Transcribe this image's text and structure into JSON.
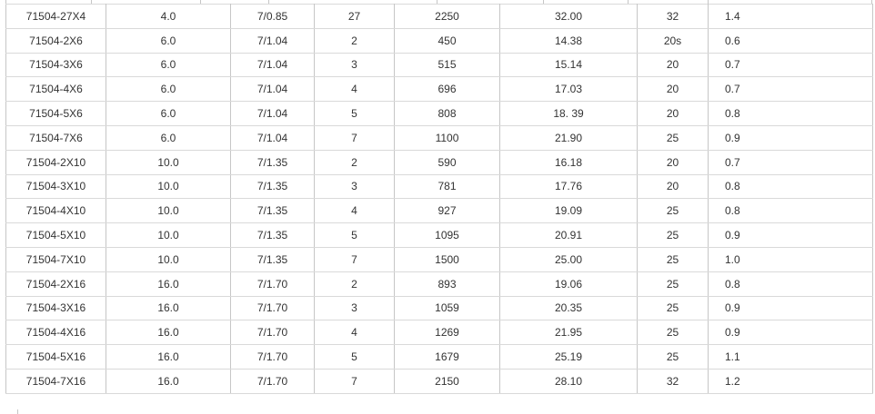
{
  "table": {
    "rows": [
      [
        "71504-27X4",
        "4.0",
        "7/0.85",
        "27",
        "2250",
        "32.00",
        "32",
        "1.4"
      ],
      [
        "71504-2X6",
        "6.0",
        "7/1.04",
        "2",
        "450",
        "14.38",
        "20s",
        "0.6"
      ],
      [
        "71504-3X6",
        "6.0",
        "7/1.04",
        "3",
        "515",
        "15.14",
        "20",
        "0.7"
      ],
      [
        "71504-4X6",
        "6.0",
        "7/1.04",
        "4",
        "696",
        "17.03",
        "20",
        "0.7"
      ],
      [
        "71504-5X6",
        "6.0",
        "7/1.04",
        "5",
        "808",
        "18. 39",
        "20",
        "0.8"
      ],
      [
        "71504-7X6",
        "6.0",
        "7/1.04",
        "7",
        "1100",
        "21.90",
        "25",
        "0.9"
      ],
      [
        "71504-2X10",
        "10.0",
        "7/1.35",
        "2",
        "590",
        "16.18",
        "20",
        "0.7"
      ],
      [
        "71504-3X10",
        "10.0",
        "7/1.35",
        "3",
        "781",
        "17.76",
        "20",
        "0.8"
      ],
      [
        "71504-4X10",
        "10.0",
        "7/1.35",
        "4",
        "927",
        "19.09",
        "25",
        "0.8"
      ],
      [
        "71504-5X10",
        "10.0",
        "7/1.35",
        "5",
        "1095",
        "20.91",
        "25",
        "0.9"
      ],
      [
        "71504-7X10",
        "10.0",
        "7/1.35",
        "7",
        "1500",
        "25.00",
        "25",
        "1.0"
      ],
      [
        "71504-2X16",
        "16.0",
        "7/1.70",
        "2",
        "893",
        "19.06",
        "25",
        "0.8"
      ],
      [
        "71504-3X16",
        "16.0",
        "7/1.70",
        "3",
        "1059",
        "20.35",
        "25",
        "0.9"
      ],
      [
        "71504-4X16",
        "16.0",
        "7/1.70",
        "4",
        "1269",
        "21.95",
        "25",
        "0.9"
      ],
      [
        "71504-5X16",
        "16.0",
        "7/1.70",
        "5",
        "1679",
        "25.19",
        "25",
        "1.1"
      ],
      [
        "71504-7X16",
        "16.0",
        "7/1.70",
        "7",
        "2150",
        "28.10",
        "32",
        "1.2"
      ]
    ]
  },
  "colors": {
    "border_vertical": "#c6c6c6",
    "border_horizontal": "#d9d9d9",
    "text": "#333333",
    "background": "#ffffff"
  }
}
